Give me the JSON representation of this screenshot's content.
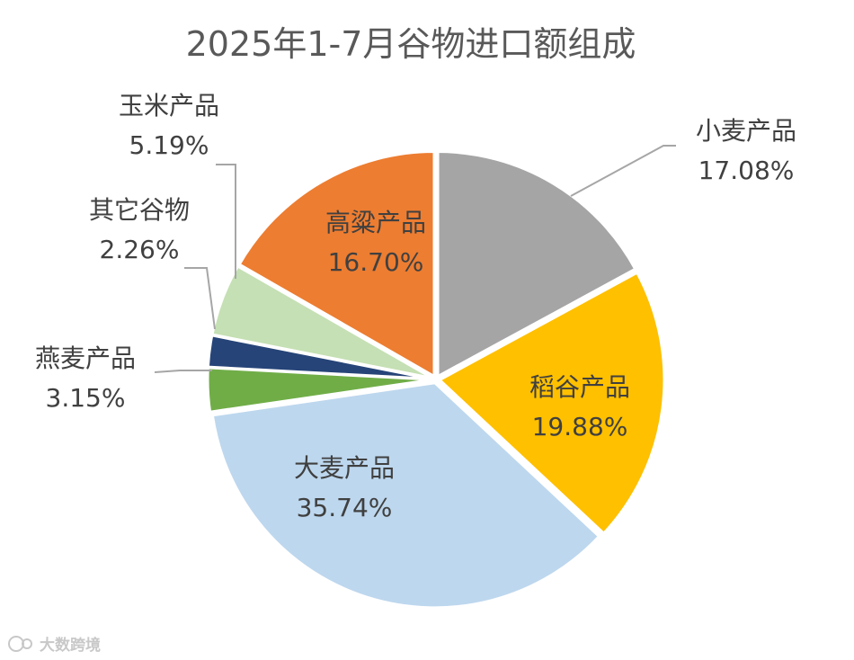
{
  "chart_data": {
    "type": "pie",
    "title": "2025年1-7月谷物进口额组成",
    "unit": "%",
    "slices": [
      {
        "name": "小麦产品",
        "value": 17.08,
        "value_label": "17.08%",
        "color": "#a5a5a5"
      },
      {
        "name": "稻谷产品",
        "value": 19.88,
        "value_label": "19.88%",
        "color": "#ffc000"
      },
      {
        "name": "大麦产品",
        "value": 35.74,
        "value_label": "35.74%",
        "color": "#bdd7ee"
      },
      {
        "name": "燕麦产品",
        "value": 3.15,
        "value_label": "3.15%",
        "color": "#70ad47"
      },
      {
        "name": "其它谷物",
        "value": 2.26,
        "value_label": "2.26%",
        "color": "#264478"
      },
      {
        "name": "玉米产品",
        "value": 5.19,
        "value_label": "5.19%",
        "color": "#c5e0b4"
      },
      {
        "name": "高粱产品",
        "value": 16.7,
        "value_label": "16.70%",
        "color": "#ed7d31"
      }
    ],
    "start_angle_deg": 0,
    "direction": "clockwise",
    "legend": "none",
    "labels": "category and percentage"
  },
  "watermark": {
    "text": "大数跨境",
    "icon": "logo-icon"
  }
}
